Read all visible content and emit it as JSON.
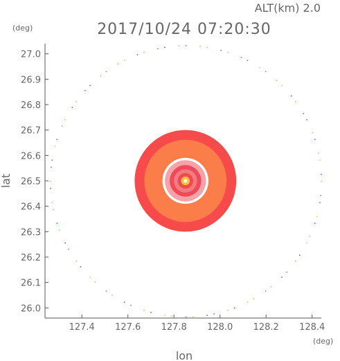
{
  "header": {
    "altitude_label": "ALT(km) 2.0",
    "timestamp": "2017/10/24 07:20:30"
  },
  "chart_data": {
    "type": "heatmap",
    "title": "2017/10/24 07:20:30",
    "xlabel": "lon",
    "ylabel": "lat",
    "x_unit": "(deg)",
    "y_unit": "(deg)",
    "xlim": [
      127.24,
      128.44
    ],
    "ylim": [
      25.96,
      27.04
    ],
    "x_ticks": [
      "127.4",
      "127.6",
      "127.8",
      "128.0",
      "128.2",
      "128.4"
    ],
    "y_ticks": [
      "26.0",
      "26.1",
      "26.2",
      "26.3",
      "26.4",
      "26.5",
      "26.6",
      "26.7",
      "26.8",
      "26.9",
      "27.0"
    ],
    "grid": false,
    "center": {
      "lon": 127.85,
      "lat": 26.5
    },
    "rings": [
      {
        "radius_deg": 0.21,
        "color": "#f74b4b"
      },
      {
        "radius_deg": 0.17,
        "color": "#fb7d4a"
      },
      {
        "radius_deg": 0.095,
        "color": "#ffffff"
      },
      {
        "radius_deg": 0.085,
        "color": "#f5a2a8"
      },
      {
        "radius_deg": 0.065,
        "color": "#f04a5a"
      },
      {
        "radius_deg": 0.048,
        "color": "#f27a82"
      },
      {
        "radius_deg": 0.032,
        "color": "#f24a4a"
      },
      {
        "radius_deg": 0.018,
        "color": "#f5c24a"
      },
      {
        "radius_deg": 0.007,
        "color": "#ffffff"
      }
    ],
    "range_circle": {
      "radius_deg": 0.56,
      "colors": [
        "#8fd14f",
        "#f7b24a",
        "#f74b4b",
        "#3a5cd8"
      ]
    }
  }
}
